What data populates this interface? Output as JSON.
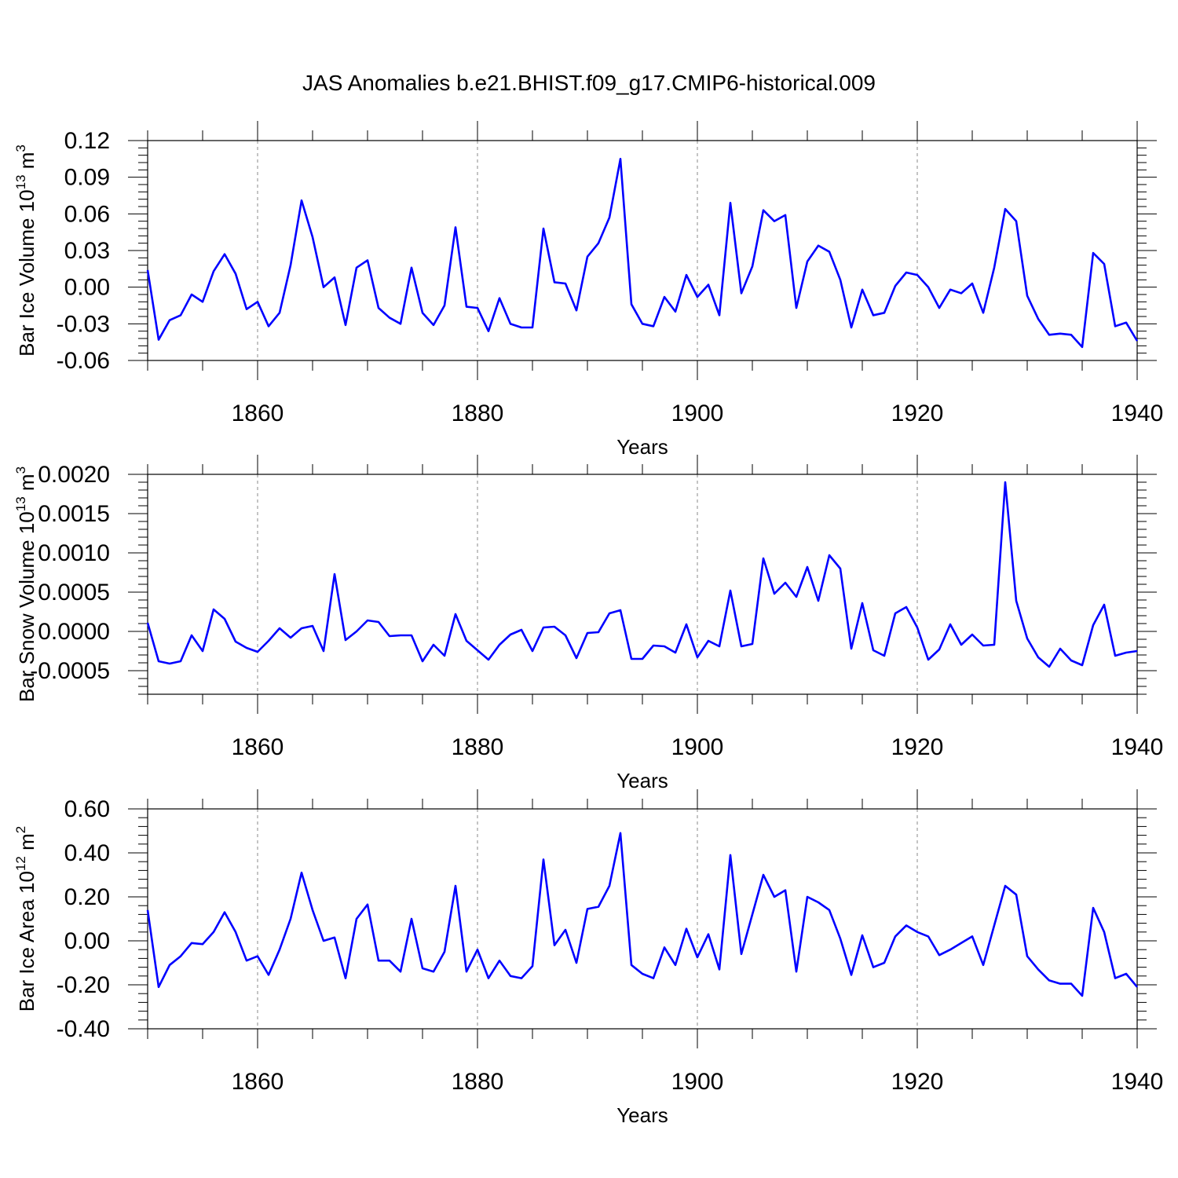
{
  "title": "JAS Anomalies b.e21.BHIST.f09_g17.CMIP6-historical.009",
  "colors": {
    "series": "#0000ff",
    "axis": "#000000",
    "grid": "#888888"
  },
  "years_start": 1850,
  "chart_data": [
    {
      "type": "line",
      "ylabel": "Bar Ice Volume 10",
      "ylabel_exp": "13",
      "ylabel_unit": " m",
      "ylabel_unit_exp": "3",
      "xlabel": "Years",
      "xlim": [
        1850,
        1940
      ],
      "ylim": [
        -0.06,
        0.12
      ],
      "yticks": [
        -0.06,
        -0.03,
        0.0,
        0.03,
        0.06,
        0.09,
        0.12
      ],
      "ytick_labels": [
        "-0.06",
        "-0.03",
        "0.00",
        "0.03",
        "0.06",
        "0.09",
        "0.12"
      ],
      "xticks": [
        1860,
        1880,
        1900,
        1920,
        1940
      ],
      "xtick_labels": [
        "1860",
        "1880",
        "1900",
        "1920",
        "1940"
      ],
      "grid_x": true,
      "values": [
        0.014,
        -0.043,
        -0.027,
        -0.023,
        -0.006,
        -0.012,
        0.013,
        0.027,
        0.011,
        -0.018,
        -0.012,
        -0.032,
        -0.021,
        0.018,
        0.071,
        0.041,
        0.0,
        0.008,
        -0.031,
        0.016,
        0.022,
        -0.017,
        -0.025,
        -0.03,
        0.016,
        -0.021,
        -0.031,
        -0.015,
        0.049,
        -0.016,
        -0.017,
        -0.036,
        -0.009,
        -0.03,
        -0.033,
        -0.033,
        0.048,
        0.004,
        0.003,
        -0.019,
        0.025,
        0.036,
        0.057,
        0.105,
        -0.014,
        -0.03,
        -0.032,
        -0.008,
        -0.02,
        0.01,
        -0.008,
        0.002,
        -0.023,
        0.069,
        -0.005,
        0.017,
        0.063,
        0.054,
        0.059,
        -0.017,
        0.021,
        0.034,
        0.029,
        0.006,
        -0.033,
        -0.002,
        -0.023,
        -0.021,
        0.001,
        0.012,
        0.01,
        0.0,
        -0.017,
        -0.002,
        -0.005,
        0.003,
        -0.021,
        0.016,
        0.064,
        0.054,
        -0.007,
        -0.026,
        -0.039,
        -0.038,
        -0.039,
        -0.049,
        0.028,
        0.019,
        -0.032,
        -0.029,
        -0.044
      ]
    },
    {
      "type": "line",
      "ylabel": "Bar Snow Volume 10",
      "ylabel_exp": "13",
      "ylabel_unit": " m",
      "ylabel_unit_exp": "3",
      "xlabel": "Years",
      "xlim": [
        1850,
        1940
      ],
      "ylim": [
        -0.0008,
        0.002
      ],
      "yticks": [
        -0.0005,
        0.0,
        0.0005,
        0.001,
        0.0015,
        0.002
      ],
      "ytick_labels": [
        "-0.0005",
        "0.0000",
        "0.0005",
        "0.0010",
        "0.0015",
        "0.0020"
      ],
      "xticks": [
        1860,
        1880,
        1900,
        1920,
        1940
      ],
      "xtick_labels": [
        "1860",
        "1880",
        "1900",
        "1920",
        "1940"
      ],
      "grid_x": true,
      "values": [
        0.00011,
        -0.00038,
        -0.00041,
        -0.00038,
        -5e-05,
        -0.00025,
        0.00028,
        0.00016,
        -0.00013,
        -0.00021,
        -0.00026,
        -0.00012,
        4e-05,
        -8e-05,
        4e-05,
        7e-05,
        -0.00025,
        0.00073,
        -0.00011,
        0.0,
        0.00014,
        0.00012,
        -6e-05,
        -5e-05,
        -5e-05,
        -0.00038,
        -0.00017,
        -0.00031,
        0.00022,
        -0.00012,
        -0.00024,
        -0.00036,
        -0.00017,
        -4e-05,
        2e-05,
        -0.00025,
        5e-05,
        6e-05,
        -5e-05,
        -0.00034,
        -2e-05,
        -1e-05,
        0.00023,
        0.00027,
        -0.00035,
        -0.00035,
        -0.00018,
        -0.00019,
        -0.00027,
        9e-05,
        -0.00033,
        -0.00012,
        -0.00019,
        0.00052,
        -0.00019,
        -0.00016,
        0.00093,
        0.00048,
        0.00062,
        0.00044,
        0.00082,
        0.00039,
        0.00097,
        0.0008,
        -0.00022,
        0.00036,
        -0.00024,
        -0.00031,
        0.00023,
        0.00031,
        5e-05,
        -0.00036,
        -0.00023,
        9e-05,
        -0.00017,
        -4e-05,
        -0.00018,
        -0.00017,
        0.0019,
        0.00039,
        -9e-05,
        -0.00033,
        -0.00045,
        -0.00022,
        -0.00037,
        -0.00043,
        8e-05,
        0.00034,
        -0.00031,
        -0.00027,
        -0.00025
      ]
    },
    {
      "type": "line",
      "ylabel": "Bar Ice Area 10",
      "ylabel_exp": "12",
      "ylabel_unit": " m",
      "ylabel_unit_exp": "2",
      "xlabel": "Years",
      "xlim": [
        1850,
        1940
      ],
      "ylim": [
        -0.4,
        0.6
      ],
      "yticks": [
        -0.4,
        -0.2,
        0.0,
        0.2,
        0.4,
        0.6
      ],
      "ytick_labels": [
        "-0.40",
        "-0.20",
        "0.00",
        "0.20",
        "0.40",
        "0.60"
      ],
      "xticks": [
        1860,
        1880,
        1900,
        1920,
        1940
      ],
      "xtick_labels": [
        "1860",
        "1880",
        "1900",
        "1920",
        "1940"
      ],
      "grid_x": true,
      "values": [
        0.14,
        -0.21,
        -0.11,
        -0.07,
        -0.01,
        -0.015,
        0.04,
        0.13,
        0.04,
        -0.09,
        -0.07,
        -0.155,
        -0.04,
        0.1,
        0.31,
        0.14,
        0.0,
        0.015,
        -0.17,
        0.1,
        0.165,
        -0.09,
        -0.09,
        -0.14,
        0.1,
        -0.125,
        -0.14,
        -0.05,
        0.25,
        -0.14,
        -0.04,
        -0.17,
        -0.09,
        -0.16,
        -0.17,
        -0.115,
        0.37,
        -0.02,
        0.05,
        -0.1,
        0.145,
        0.155,
        0.25,
        0.49,
        -0.11,
        -0.15,
        -0.17,
        -0.03,
        -0.11,
        0.055,
        -0.075,
        0.03,
        -0.13,
        0.39,
        -0.06,
        0.12,
        0.3,
        0.2,
        0.23,
        -0.14,
        0.2,
        0.175,
        0.14,
        0.01,
        -0.155,
        0.025,
        -0.12,
        -0.1,
        0.02,
        0.07,
        0.04,
        0.02,
        -0.065,
        -0.04,
        -0.01,
        0.02,
        -0.11,
        0.07,
        0.25,
        0.21,
        -0.07,
        -0.13,
        -0.18,
        -0.195,
        -0.195,
        -0.25,
        0.15,
        0.04,
        -0.17,
        -0.15,
        -0.21
      ]
    }
  ]
}
